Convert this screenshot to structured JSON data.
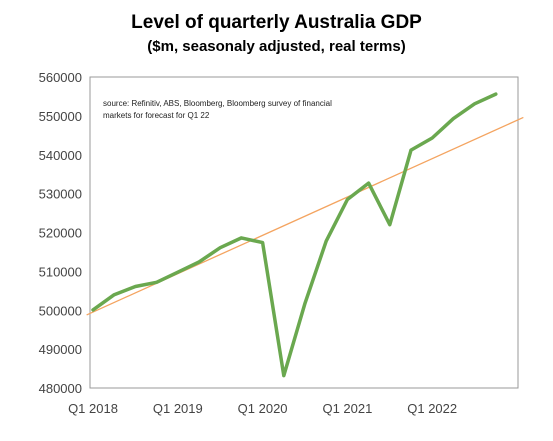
{
  "chart_data": {
    "type": "line",
    "title": "Level of quarterly Australia GDP",
    "subtitle": "($m, seasonaly adjusted, real terms)",
    "annotation_lines": [
      "source:  Refinitiv, ABS, Bloomberg, Bloomberg survey of financial",
      "markets for forecast for Q1 22"
    ],
    "xlabel": "",
    "ylabel": "",
    "ylim": [
      480000,
      560000
    ],
    "y_ticks": [
      480000,
      490000,
      500000,
      510000,
      520000,
      530000,
      540000,
      550000,
      560000
    ],
    "y_tick_labels": [
      "480000",
      "490000",
      "500000",
      "510000",
      "520000",
      "530000",
      "540000",
      "550000",
      "560000"
    ],
    "x_tick_labels": [
      {
        "label": "Q1 2018",
        "index": 0
      },
      {
        "label": "Q1 2019",
        "index": 4
      },
      {
        "label": "Q1 2020",
        "index": 8
      },
      {
        "label": "Q1 2021",
        "index": 12
      },
      {
        "label": "Q1 2022",
        "index": 16
      }
    ],
    "series": [
      {
        "color": "#6aa84f",
        "values": [
          500100,
          504000,
          506100,
          507200,
          509800,
          512400,
          516100,
          518600,
          517400,
          483200,
          501800,
          517800,
          528500,
          532700,
          522000,
          541200,
          544300,
          549300,
          553100,
          555600
        ]
      },
      {
        "color": "#f4a460",
        "trend_start": {
          "index": -0.3,
          "value": 498800
        },
        "trend_end": {
          "index": 20.3,
          "value": 549600
        }
      }
    ],
    "grid": false,
    "legend": "none"
  }
}
